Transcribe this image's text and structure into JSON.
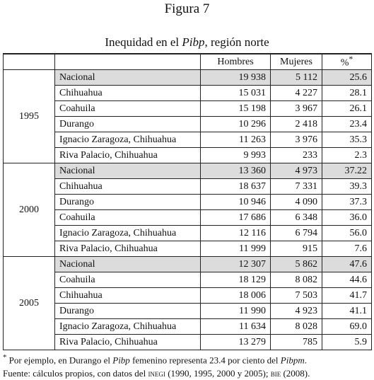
{
  "figure_label": "Figura 7",
  "subtitle": {
    "before": "Inequidad en el ",
    "italic": "Pibp",
    "after": ", región norte"
  },
  "table": {
    "header": [
      "Hombres",
      "Mujeres",
      "%"
    ],
    "header_mark": "*",
    "groups": [
      {
        "year": "1995",
        "rows": [
          [
            "Nacional",
            "19 938",
            "5 112",
            "25.6"
          ],
          [
            "Chihuahua",
            "15 031",
            "4 227",
            "28.1"
          ],
          [
            "Coahuila",
            "15 198",
            "3 967",
            "26.1"
          ],
          [
            "Durango",
            "10 296",
            "2 418",
            "23.4"
          ],
          [
            "Ignacio Zaragoza, Chihuahua",
            "11 263",
            "3 976",
            "35.3"
          ],
          [
            "Riva Palacio, Chihuahua",
            "9 993",
            "233",
            "2.3"
          ]
        ]
      },
      {
        "year": "2000",
        "rows": [
          [
            "Nacional",
            "13 360",
            "4 973",
            "37.22"
          ],
          [
            "Chihuahua",
            "18 637",
            "7 331",
            "39.3"
          ],
          [
            "Durango",
            "10 946",
            "4 090",
            "37.3"
          ],
          [
            "Coahuila",
            "17 686",
            "6 348",
            "36.0"
          ],
          [
            "Ignacio Zaragoza, Chihuahua",
            "12 116",
            "6 794",
            "56.0"
          ],
          [
            "Riva Palacio, Chihuahua",
            "11 999",
            "915",
            "7.6"
          ]
        ]
      },
      {
        "year": "2005",
        "rows": [
          [
            "Nacional",
            "12 307",
            "5 862",
            "47.6"
          ],
          [
            "Coahuila",
            "18 129",
            "8 082",
            "44.6"
          ],
          [
            "Chihuahua",
            "18 006",
            "7 503",
            "41.7"
          ],
          [
            "Durango",
            "11 990",
            "4 923",
            "41.1"
          ],
          [
            "Ignacio Zaragoza, Chihuahua",
            "11 634",
            "8 028",
            "69.0"
          ],
          [
            "Riva Palacio, Chihuahua",
            "13 279",
            "785",
            "5.9"
          ]
        ]
      }
    ]
  },
  "notes": [
    [
      {
        "t": "*",
        "s": "sup"
      },
      {
        "t": " Por ejemplo, en Durango el "
      },
      {
        "t": "Pibp",
        "s": "i"
      },
      {
        "t": " femenino representa 23.4 por ciento del "
      },
      {
        "t": "Pibpm",
        "s": "i"
      },
      {
        "t": "."
      }
    ],
    [
      {
        "t": "Fuente: cálculos propios, con datos del "
      },
      {
        "t": "inegi",
        "s": "sc"
      },
      {
        "t": " (1990, 1995, 2000 y 2005); "
      },
      {
        "t": "bie",
        "s": "sc"
      },
      {
        "t": " (2008)."
      }
    ]
  ]
}
